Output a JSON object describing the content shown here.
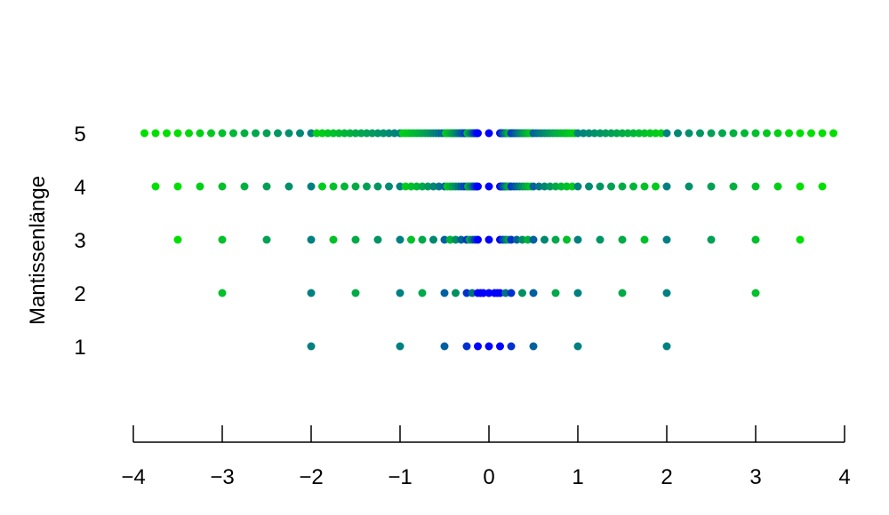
{
  "chart_data": {
    "type": "scatter",
    "title": "",
    "xlabel": "",
    "ylabel": "Mantissenlänge",
    "xlim": [
      -4,
      4
    ],
    "ylim": [
      0,
      6
    ],
    "x_ticks": [
      -4,
      -3,
      -2,
      -1,
      0,
      1,
      2,
      3,
      4
    ],
    "x_tick_labels": [
      "−4",
      "−3",
      "−2",
      "−1",
      "0",
      "1",
      "2",
      "3",
      "4"
    ],
    "y_ticks": [
      1,
      2,
      3,
      4,
      5
    ],
    "y_tick_labels": [
      "1",
      "2",
      "3",
      "4",
      "5"
    ],
    "grid": false,
    "legend": "none",
    "colors": {
      "near_zero": "#0000ff",
      "mid": "#008080",
      "far": "#00e000"
    },
    "series": [
      {
        "mantissa_length": 1,
        "exponent_range": [
          -3,
          1
        ],
        "x": [
          -2,
          -1,
          -0.5,
          -0.25,
          -0.125,
          0,
          0.125,
          0.25,
          0.5,
          1,
          2
        ]
      },
      {
        "mantissa_length": 2,
        "exponent_range": [
          -3,
          1
        ],
        "x": [
          -3,
          -2,
          -1.5,
          -1,
          -0.75,
          -0.5,
          -0.375,
          -0.25,
          -0.1875,
          -0.125,
          -0.09375,
          -0.0625,
          0,
          0.0625,
          0.09375,
          0.125,
          0.1875,
          0.25,
          0.375,
          0.5,
          0.75,
          1,
          1.5,
          2,
          3
        ]
      },
      {
        "mantissa_length": 3,
        "exponent_range": [
          -3,
          1
        ],
        "note_on_values": "all positive and negative normalized numbers with 3-bit mantissa plus zero",
        "x_max": 3.5
      },
      {
        "mantissa_length": 4,
        "exponent_range": [
          -3,
          1
        ],
        "x_max": 3.75
      },
      {
        "mantissa_length": 5,
        "exponent_range": [
          -3,
          1
        ],
        "x_max": 3.875
      }
    ]
  }
}
